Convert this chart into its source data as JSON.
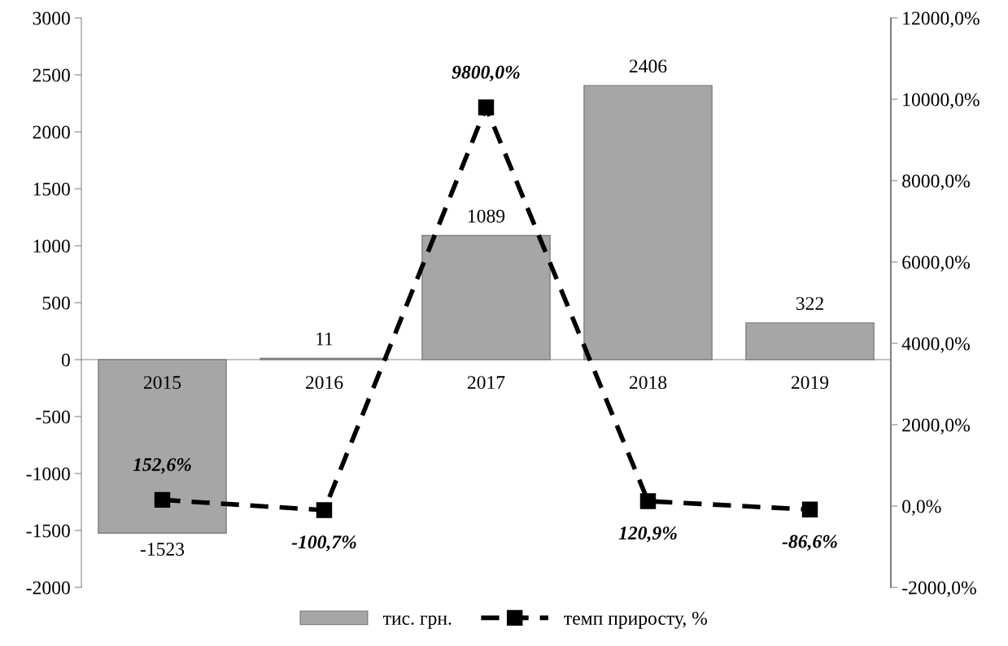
{
  "chart_data": {
    "type": "bar",
    "categories": [
      "2015",
      "2016",
      "2017",
      "2018",
      "2019"
    ],
    "series": [
      {
        "name": "тис. грн.",
        "color": "#a6a6a6",
        "values": [
          -1523,
          11,
          1089,
          2406,
          322
        ]
      },
      {
        "name": "темп приросту, %",
        "type": "line",
        "axis": "y2",
        "color": "#000000",
        "marker": "square",
        "line_style": "dashed",
        "values": [
          152.6,
          -100.7,
          9800.0,
          120.9,
          -86.6
        ],
        "value_labels": [
          "152,6%",
          "-100,7%",
          "9800,0%",
          "120,9%",
          "-86,6%"
        ]
      }
    ],
    "data_labels": true,
    "ylim": [
      -2000,
      3000
    ],
    "yticks": [
      -2000,
      -1500,
      -1000,
      -500,
      0,
      500,
      1000,
      1500,
      2000,
      2500,
      3000
    ],
    "y2lim": [
      -2000,
      12000
    ],
    "y2ticks": [
      {
        "value": -2000,
        "label": "-2000,0%"
      },
      {
        "value": 0,
        "label": "0,0%"
      },
      {
        "value": 2000,
        "label": "2000,0%"
      },
      {
        "value": 4000,
        "label": "4000,0%"
      },
      {
        "value": 6000,
        "label": "6000,0%"
      },
      {
        "value": 8000,
        "label": "8000,0%"
      },
      {
        "value": 10000,
        "label": "10000,0%"
      },
      {
        "value": 12000,
        "label": "12000,0%"
      }
    ],
    "grid": false,
    "legend": "bottom"
  }
}
